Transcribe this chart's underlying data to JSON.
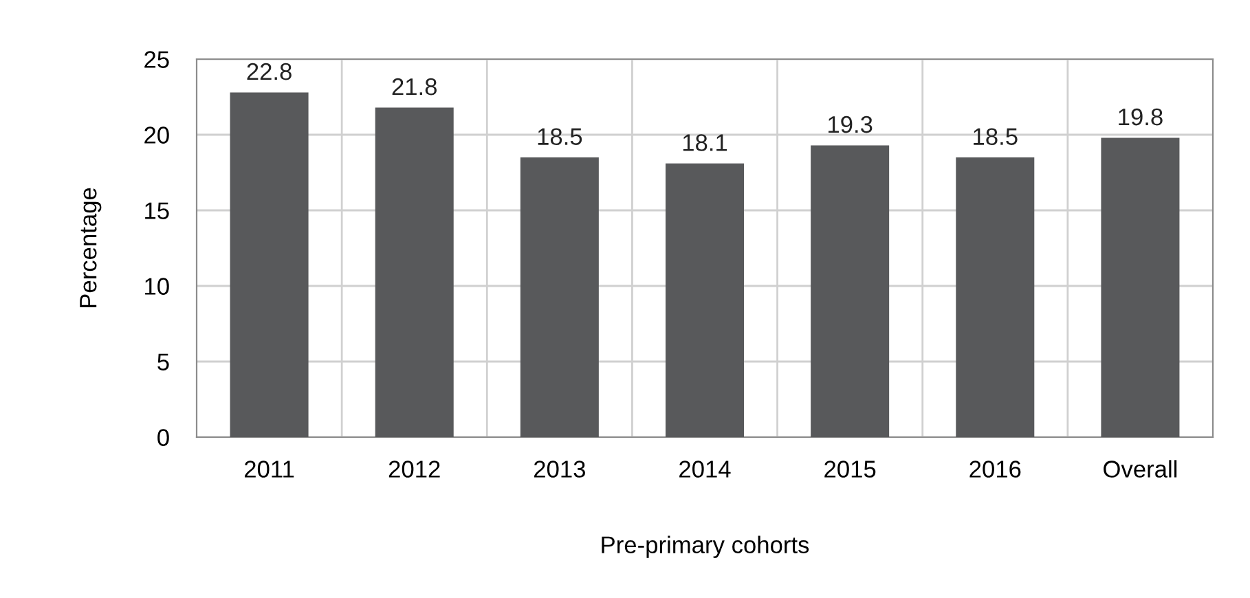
{
  "chart_data": {
    "type": "bar",
    "xlabel": "Pre-primary cohorts",
    "ylabel": "Percentage",
    "categories": [
      "2011",
      "2012",
      "2013",
      "2014",
      "2015",
      "2016",
      "Overall"
    ],
    "values": [
      22.8,
      21.8,
      18.5,
      18.1,
      19.3,
      18.5,
      19.8
    ],
    "color": "#58595b",
    "ylim": [
      0,
      25
    ],
    "yticks": [
      0,
      5,
      10,
      15,
      20,
      25
    ],
    "grid": true,
    "data_labels": true
  }
}
